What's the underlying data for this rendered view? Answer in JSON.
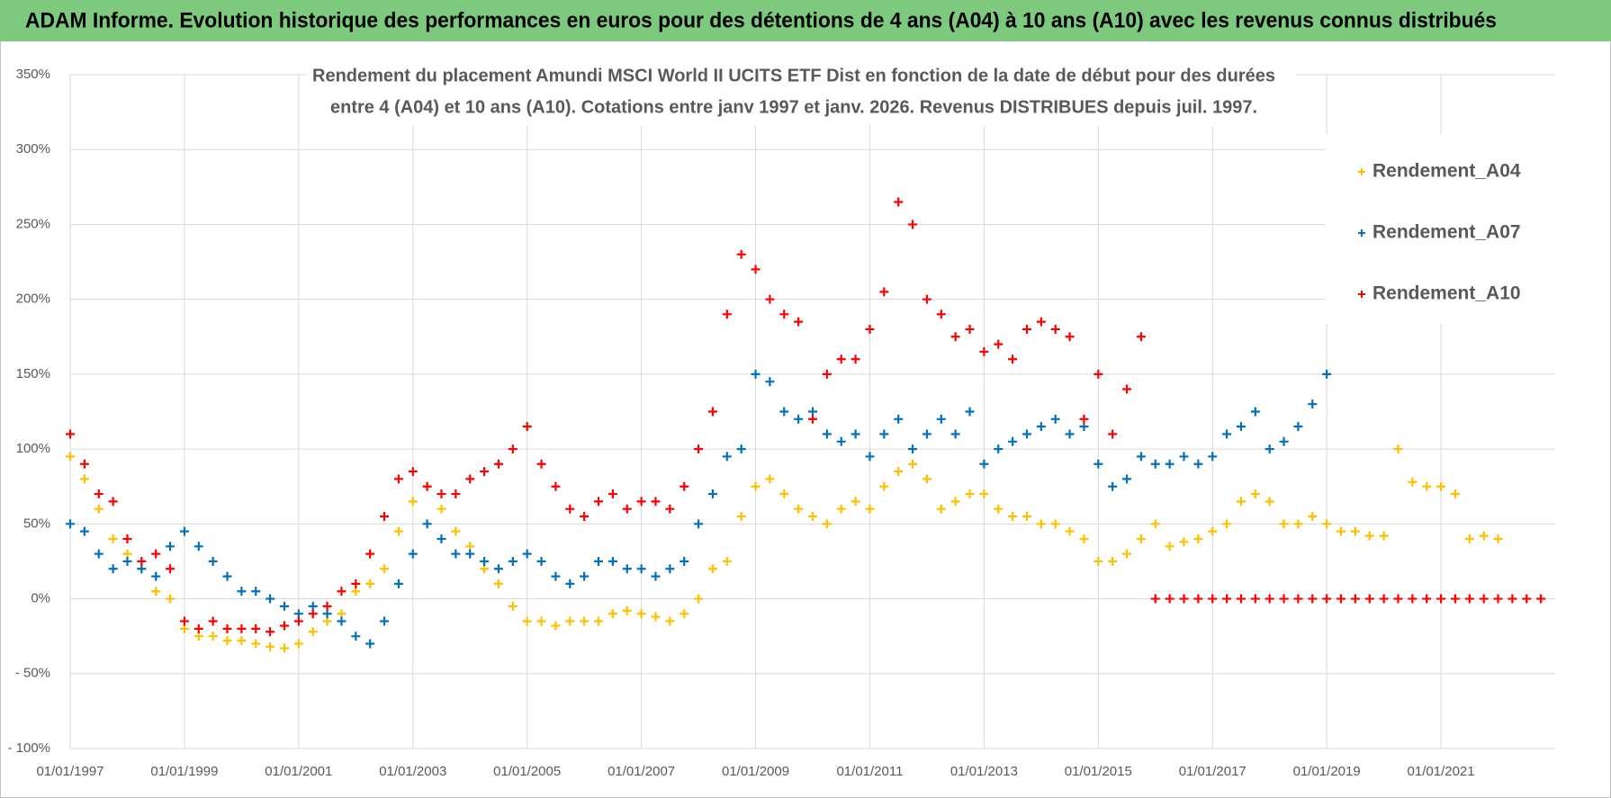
{
  "header": {
    "title": "ADAM Informe. Evolution historique des performances en euros pour des détentions de 4 ans (A04) à 10 ans (A10) avec les revenus connus distribués"
  },
  "chart_data": {
    "type": "scatter",
    "title": [
      "Rendement du placement Amundi MSCI World II UCITS ETF Dist en fonction de la date de début pour des durées",
      "entre 4 (A04) et 10 ans (A10).  Cotations entre janv 1997 et janv. 2026. Revenus DISTRIBUES depuis juil. 1997."
    ],
    "x": [
      "01/01/1997",
      "01/04/1997",
      "01/07/1997",
      "01/10/1997",
      "01/01/1998",
      "01/04/1998",
      "01/07/1998",
      "01/10/1998",
      "01/01/1999",
      "01/04/1999",
      "01/07/1999",
      "01/10/1999",
      "01/01/2000",
      "01/04/2000",
      "01/07/2000",
      "01/10/2000",
      "01/01/2001",
      "01/04/2001",
      "01/07/2001",
      "01/10/2001",
      "01/01/2002",
      "01/04/2002",
      "01/07/2002",
      "01/10/2002",
      "01/01/2003",
      "01/04/2003",
      "01/07/2003",
      "01/10/2003",
      "01/01/2004",
      "01/04/2004",
      "01/07/2004",
      "01/10/2004",
      "01/01/2005",
      "01/04/2005",
      "01/07/2005",
      "01/10/2005",
      "01/01/2006",
      "01/04/2006",
      "01/07/2006",
      "01/10/2006",
      "01/01/2007",
      "01/04/2007",
      "01/07/2007",
      "01/10/2007",
      "01/01/2008",
      "01/04/2008",
      "01/07/2008",
      "01/10/2008",
      "01/01/2009",
      "01/04/2009",
      "01/07/2009",
      "01/10/2009",
      "01/01/2010",
      "01/04/2010",
      "01/07/2010",
      "01/10/2010",
      "01/01/2011",
      "01/04/2011",
      "01/07/2011",
      "01/10/2011",
      "01/01/2012",
      "01/04/2012",
      "01/07/2012",
      "01/10/2012",
      "01/01/2013",
      "01/04/2013",
      "01/07/2013",
      "01/10/2013",
      "01/01/2014",
      "01/04/2014",
      "01/07/2014",
      "01/10/2014",
      "01/01/2015",
      "01/04/2015",
      "01/07/2015",
      "01/10/2015",
      "01/01/2016",
      "01/04/2016",
      "01/07/2016",
      "01/10/2016",
      "01/01/2017",
      "01/04/2017",
      "01/07/2017",
      "01/10/2017",
      "01/01/2018",
      "01/04/2018",
      "01/07/2018",
      "01/10/2018",
      "01/01/2019",
      "01/04/2019",
      "01/07/2019",
      "01/10/2019",
      "01/01/2020",
      "01/04/2020",
      "01/07/2020",
      "01/10/2020",
      "01/01/2021",
      "01/04/2021",
      "01/07/2021",
      "01/10/2021",
      "01/01/2022",
      "01/04/2022",
      "01/07/2022",
      "01/10/2022"
    ],
    "series": [
      {
        "name": "Rendement_A04",
        "color": "#ffc000",
        "values": [
          95,
          80,
          60,
          40,
          30,
          20,
          5,
          0,
          -20,
          -25,
          -25,
          -28,
          -28,
          -30,
          -32,
          -33,
          -30,
          -22,
          -15,
          -10,
          5,
          10,
          20,
          45,
          65,
          75,
          60,
          45,
          35,
          20,
          10,
          -5,
          -15,
          -15,
          -18,
          -15,
          -15,
          -15,
          -10,
          -8,
          -10,
          -12,
          -15,
          -10,
          0,
          20,
          25,
          55,
          75,
          80,
          70,
          60,
          55,
          50,
          60,
          65,
          60,
          75,
          85,
          90,
          80,
          60,
          65,
          70,
          70,
          60,
          55,
          55,
          50,
          50,
          45,
          40,
          25,
          25,
          30,
          40,
          50,
          35,
          38,
          40,
          45,
          50,
          65,
          70,
          65,
          50,
          50,
          55,
          50,
          45,
          45,
          42,
          42,
          100,
          78,
          75,
          75,
          70,
          40,
          42,
          40,
          null,
          null,
          null
        ]
      },
      {
        "name": "Rendement_A07",
        "color": "#0070c0",
        "values": [
          50,
          45,
          30,
          20,
          25,
          20,
          15,
          35,
          45,
          35,
          25,
          15,
          5,
          5,
          0,
          -5,
          -10,
          -5,
          -10,
          -15,
          -25,
          -30,
          -15,
          10,
          30,
          50,
          40,
          30,
          30,
          25,
          20,
          25,
          30,
          25,
          15,
          10,
          15,
          25,
          25,
          20,
          20,
          15,
          20,
          25,
          50,
          70,
          95,
          100,
          150,
          145,
          125,
          120,
          125,
          110,
          105,
          110,
          95,
          110,
          120,
          100,
          110,
          120,
          110,
          125,
          90,
          100,
          105,
          110,
          115,
          120,
          110,
          115,
          90,
          75,
          80,
          95,
          90,
          90,
          95,
          90,
          95,
          110,
          115,
          125,
          100,
          105,
          115,
          130,
          150,
          null,
          null,
          null,
          null,
          null,
          null,
          null,
          null,
          null,
          null,
          null,
          null,
          null,
          null,
          null
        ]
      },
      {
        "name": "Rendement_A10",
        "color": "#ff0000",
        "values": [
          110,
          90,
          70,
          65,
          40,
          25,
          30,
          20,
          -15,
          -20,
          -15,
          -20,
          -20,
          -20,
          -22,
          -18,
          -15,
          -10,
          -5,
          5,
          10,
          30,
          55,
          80,
          85,
          75,
          70,
          70,
          80,
          85,
          90,
          100,
          115,
          90,
          75,
          60,
          55,
          65,
          70,
          60,
          65,
          65,
          60,
          75,
          100,
          125,
          190,
          230,
          220,
          200,
          190,
          185,
          120,
          150,
          160,
          160,
          180,
          205,
          265,
          250,
          200,
          190,
          175,
          180,
          165,
          170,
          160,
          180,
          185,
          180,
          175,
          120,
          150,
          110,
          140,
          175,
          0,
          0,
          0,
          0,
          0,
          0,
          0,
          0,
          0,
          0,
          0,
          0,
          0,
          0,
          0,
          0,
          0,
          0,
          0,
          0,
          0,
          0,
          0,
          0,
          0,
          0,
          0,
          0
        ]
      }
    ],
    "xlim": [
      "01/01/1997",
      "01/01/2023"
    ],
    "xticks": [
      "01/01/1997",
      "01/01/1999",
      "01/01/2001",
      "01/01/2003",
      "01/01/2005",
      "01/01/2007",
      "01/01/2009",
      "01/01/2011",
      "01/01/2013",
      "01/01/2015",
      "01/01/2017",
      "01/01/2019",
      "01/01/2021"
    ],
    "ylim": [
      -100,
      350
    ],
    "yticks": [
      {
        "value": -100,
        "label": "- 100%"
      },
      {
        "value": -50,
        "label": "- 50%"
      },
      {
        "value": 0,
        "label": "0%"
      },
      {
        "value": 50,
        "label": "50%"
      },
      {
        "value": 100,
        "label": "100%"
      },
      {
        "value": 150,
        "label": "150%"
      },
      {
        "value": 200,
        "label": "200%"
      },
      {
        "value": 250,
        "label": "250%"
      },
      {
        "value": 300,
        "label": "300%"
      },
      {
        "value": 350,
        "label": "350%"
      }
    ],
    "grid": true,
    "legend": "top-right"
  }
}
